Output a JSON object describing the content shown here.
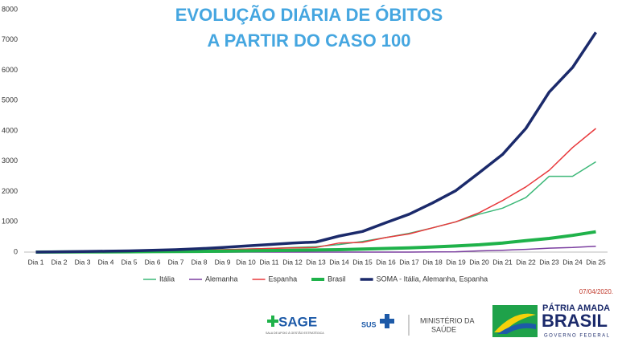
{
  "chart_data": {
    "type": "line",
    "title": "EVOLUÇÃO DIÁRIA DE ÓBITOS",
    "subtitle": "A PARTIR DO CASO 100",
    "categories": [
      "Dia 1",
      "Dia 2",
      "Dia 3",
      "Dia 4",
      "Dia 5",
      "Dia 6",
      "Dia 7",
      "Dia 8",
      "Dia 9",
      "Dia 10",
      "Dia 11",
      "Dia 12",
      "Dia 13",
      "Dia 14",
      "Dia 15",
      "Dia 16",
      "Dia 17",
      "Dia 18",
      "Dia 19",
      "Dia 20",
      "Dia 21",
      "Dia 22",
      "Dia 23",
      "Dia 24",
      "Dia 25"
    ],
    "series": [
      {
        "name": "Itália",
        "color": "#3cb878",
        "width": 1.5,
        "values": [
          0,
          5,
          10,
          15,
          20,
          30,
          40,
          60,
          80,
          100,
          120,
          150,
          180,
          250,
          350,
          480,
          620,
          800,
          1000,
          1250,
          1450,
          1800,
          2500,
          2500,
          2980
        ]
      },
      {
        "name": "Alemanha",
        "color": "#7b3fa0",
        "width": 1.5,
        "values": [
          0,
          0,
          0,
          0,
          0,
          0,
          0,
          0,
          0,
          0,
          0,
          0,
          0,
          0,
          0,
          0,
          0,
          5,
          10,
          40,
          60,
          90,
          130,
          150,
          190
        ]
      },
      {
        "name": "Espanha",
        "color": "#e8383b",
        "width": 1.5,
        "values": [
          0,
          5,
          10,
          15,
          20,
          30,
          40,
          60,
          80,
          100,
          120,
          140,
          150,
          300,
          320,
          480,
          600,
          800,
          1000,
          1300,
          1700,
          2150,
          2700,
          3450,
          4080
        ]
      },
      {
        "name": "Brasil",
        "color": "#1fb24a",
        "width": 4,
        "values": [
          0,
          2,
          5,
          8,
          10,
          15,
          20,
          25,
          30,
          40,
          50,
          60,
          70,
          80,
          100,
          120,
          140,
          170,
          200,
          240,
          300,
          380,
          450,
          550,
          670
        ]
      },
      {
        "name": "SOMA - Itália, Alemanha, Espanha",
        "color": "#1b2a6b",
        "width": 3.5,
        "values": [
          0,
          10,
          20,
          30,
          40,
          60,
          80,
          110,
          150,
          200,
          250,
          300,
          330,
          530,
          680,
          970,
          1250,
          1620,
          2030,
          2620,
          3220,
          4080,
          5280,
          6090,
          7250
        ]
      }
    ],
    "ylim": [
      0,
      8000
    ],
    "yticks": [
      0,
      1000,
      2000,
      3000,
      4000,
      5000,
      6000,
      7000,
      8000
    ],
    "grid": false,
    "legend": "bottom",
    "date_note": "07/04/2020."
  },
  "footer": {
    "sage": "SAGE",
    "sage_sub": "SALA DE APOIO À GESTÃO ESTRATÉGICA",
    "sus": "SUS",
    "ministry_line1": "MINISTÉRIO DA",
    "ministry_line2": "SAÚDE",
    "brand_line1": "PÁTRIA AMADA",
    "brand_line2": "BRASIL",
    "brand_line3": "GOVERNO FEDERAL"
  }
}
